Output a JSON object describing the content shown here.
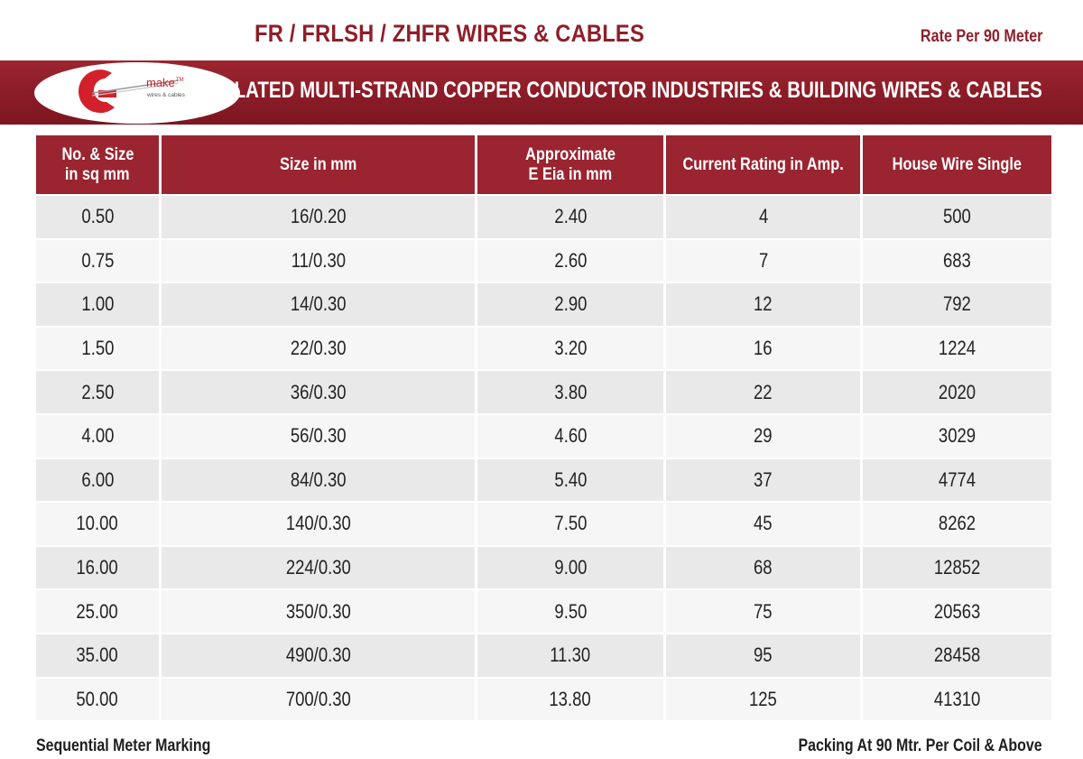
{
  "header": {
    "title": "FR / FRLSH / ZHFR WIRES & CABLES",
    "rate_note": "Rate Per 90 Meter"
  },
  "banner": {
    "text": "PVC INSULATED MULTI-STRAND COPPER CONDUCTOR INDUSTRIES & BUILDING WIRES & CABLES",
    "color": "#8e1f2a"
  },
  "logo": {
    "brand": "make",
    "tm": "TM",
    "tagline": "wires & cables",
    "accent": "#d3202a"
  },
  "table": {
    "columns": [
      {
        "line1": "No. & Size",
        "line2": "in sq mm"
      },
      {
        "line1": "Size in mm",
        "line2": ""
      },
      {
        "line1": "Approximate",
        "line2": "E Eia in mm"
      },
      {
        "line1": "Current Rating in Amp.",
        "line2": ""
      },
      {
        "line1": "House Wire Single",
        "line2": ""
      }
    ],
    "rows": [
      [
        "0.50",
        "16/0.20",
        "2.40",
        "4",
        "500"
      ],
      [
        "0.75",
        "11/0.30",
        "2.60",
        "7",
        "683"
      ],
      [
        "1.00",
        "14/0.30",
        "2.90",
        "12",
        "792"
      ],
      [
        "1.50",
        "22/0.30",
        "3.20",
        "16",
        "1224"
      ],
      [
        "2.50",
        "36/0.30",
        "3.80",
        "22",
        "2020"
      ],
      [
        "4.00",
        "56/0.30",
        "4.60",
        "29",
        "3029"
      ],
      [
        "6.00",
        "84/0.30",
        "5.40",
        "37",
        "4774"
      ],
      [
        "10.00",
        "140/0.30",
        "7.50",
        "45",
        "8262"
      ],
      [
        "16.00",
        "224/0.30",
        "9.00",
        "68",
        "12852"
      ],
      [
        "25.00",
        "350/0.30",
        "9.50",
        "75",
        "20563"
      ],
      [
        "35.00",
        "490/0.30",
        "11.30",
        "95",
        "28458"
      ],
      [
        "50.00",
        "700/0.30",
        "13.80",
        "125",
        "41310"
      ]
    ]
  },
  "footer": {
    "left": "Sequential Meter Marking",
    "right": "Packing At 90 Mtr. Per Coil & Above"
  }
}
